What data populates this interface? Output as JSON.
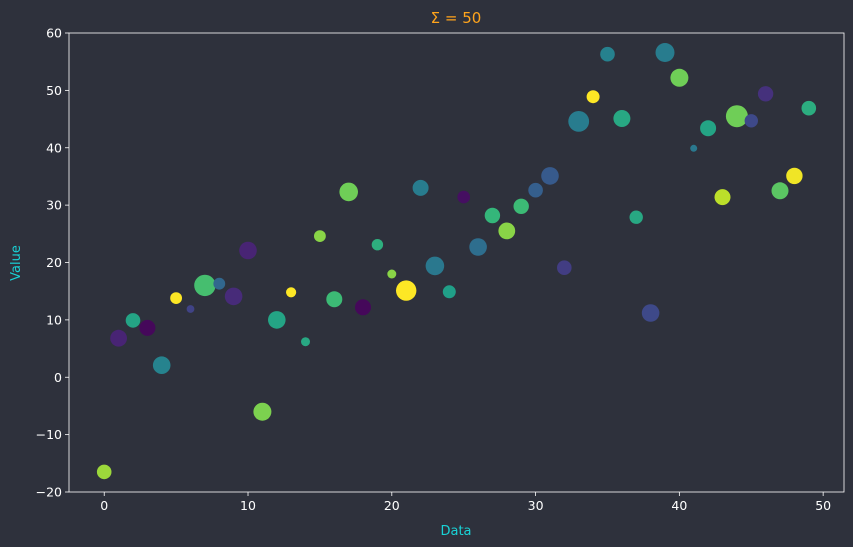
{
  "chart_data": {
    "type": "scatter",
    "title": "Σ = 50",
    "xlabel": "Data",
    "ylabel": "Value",
    "xlim": [
      -2.45,
      51.45
    ],
    "ylim": [
      -20,
      60
    ],
    "xticks": [
      0,
      10,
      20,
      30,
      40,
      50
    ],
    "yticks": [
      -20,
      -10,
      0,
      10,
      20,
      30,
      40,
      50,
      60
    ],
    "grid": false,
    "colormap": "viridis",
    "colors": {
      "background": "#2e313c",
      "axes_frame": "#ffffff",
      "tick_labels": "#ffffff",
      "axis_titles": "#19d3d6",
      "title": "#ffa41c"
    },
    "points": [
      {
        "x": 0,
        "y": -16.5,
        "size": 0.33,
        "color": 0.85
      },
      {
        "x": 1,
        "y": 6.8,
        "size": 0.45,
        "color": 0.1
      },
      {
        "x": 2,
        "y": 9.9,
        "size": 0.33,
        "color": 0.58
      },
      {
        "x": 3,
        "y": 8.6,
        "size": 0.4,
        "color": 0.02
      },
      {
        "x": 4,
        "y": 2.1,
        "size": 0.5,
        "color": 0.45
      },
      {
        "x": 5,
        "y": 13.8,
        "size": 0.2,
        "color": 1.0
      },
      {
        "x": 6,
        "y": 11.9,
        "size": 0.07,
        "color": 0.2
      },
      {
        "x": 7,
        "y": 16.0,
        "size": 0.77,
        "color": 0.7
      },
      {
        "x": 8,
        "y": 16.3,
        "size": 0.2,
        "color": 0.33
      },
      {
        "x": 9,
        "y": 14.1,
        "size": 0.5,
        "color": 0.12
      },
      {
        "x": 10,
        "y": 22.1,
        "size": 0.5,
        "color": 0.1
      },
      {
        "x": 11,
        "y": -6.0,
        "size": 0.53,
        "color": 0.8
      },
      {
        "x": 12,
        "y": 10.0,
        "size": 0.5,
        "color": 0.58
      },
      {
        "x": 13,
        "y": 14.8,
        "size": 0.14,
        "color": 1.0
      },
      {
        "x": 14,
        "y": 6.2,
        "size": 0.1,
        "color": 0.6
      },
      {
        "x": 15,
        "y": 24.6,
        "size": 0.2,
        "color": 0.82
      },
      {
        "x": 16,
        "y": 13.6,
        "size": 0.4,
        "color": 0.68
      },
      {
        "x": 17,
        "y": 32.3,
        "size": 0.57,
        "color": 0.78
      },
      {
        "x": 18,
        "y": 12.2,
        "size": 0.4,
        "color": 0.02
      },
      {
        "x": 19,
        "y": 23.1,
        "size": 0.18,
        "color": 0.63
      },
      {
        "x": 20,
        "y": 18.0,
        "size": 0.1,
        "color": 0.82
      },
      {
        "x": 21,
        "y": 15.1,
        "size": 0.7,
        "color": 1.0
      },
      {
        "x": 22,
        "y": 33.0,
        "size": 0.4,
        "color": 0.42
      },
      {
        "x": 23,
        "y": 19.4,
        "size": 0.57,
        "color": 0.4
      },
      {
        "x": 24,
        "y": 14.9,
        "size": 0.25,
        "color": 0.56
      },
      {
        "x": 25,
        "y": 31.4,
        "size": 0.23,
        "color": 0.04
      },
      {
        "x": 26,
        "y": 22.7,
        "size": 0.5,
        "color": 0.36
      },
      {
        "x": 27,
        "y": 28.2,
        "size": 0.37,
        "color": 0.66
      },
      {
        "x": 28,
        "y": 25.5,
        "size": 0.45,
        "color": 0.82
      },
      {
        "x": 29,
        "y": 29.8,
        "size": 0.37,
        "color": 0.68
      },
      {
        "x": 30,
        "y": 32.6,
        "size": 0.33,
        "color": 0.3
      },
      {
        "x": 31,
        "y": 35.1,
        "size": 0.5,
        "color": 0.28
      },
      {
        "x": 32,
        "y": 19.1,
        "size": 0.33,
        "color": 0.18
      },
      {
        "x": 33,
        "y": 44.6,
        "size": 0.73,
        "color": 0.42
      },
      {
        "x": 34,
        "y": 48.9,
        "size": 0.25,
        "color": 1.0
      },
      {
        "x": 35,
        "y": 56.3,
        "size": 0.33,
        "color": 0.44
      },
      {
        "x": 36,
        "y": 45.1,
        "size": 0.47,
        "color": 0.6
      },
      {
        "x": 37,
        "y": 27.9,
        "size": 0.27,
        "color": 0.6
      },
      {
        "x": 38,
        "y": 11.2,
        "size": 0.5,
        "color": 0.22
      },
      {
        "x": 39,
        "y": 56.6,
        "size": 0.6,
        "color": 0.42
      },
      {
        "x": 40,
        "y": 52.2,
        "size": 0.53,
        "color": 0.78
      },
      {
        "x": 41,
        "y": 39.9,
        "size": 0.05,
        "color": 0.4
      },
      {
        "x": 42,
        "y": 43.4,
        "size": 0.4,
        "color": 0.58
      },
      {
        "x": 43,
        "y": 31.4,
        "size": 0.4,
        "color": 0.9
      },
      {
        "x": 44,
        "y": 45.5,
        "size": 0.83,
        "color": 0.78
      },
      {
        "x": 45,
        "y": 44.7,
        "size": 0.27,
        "color": 0.22
      },
      {
        "x": 46,
        "y": 49.4,
        "size": 0.37,
        "color": 0.14
      },
      {
        "x": 47,
        "y": 32.5,
        "size": 0.47,
        "color": 0.74
      },
      {
        "x": 48,
        "y": 35.1,
        "size": 0.43,
        "color": 0.98
      },
      {
        "x": 49,
        "y": 46.9,
        "size": 0.33,
        "color": 0.62
      }
    ]
  }
}
